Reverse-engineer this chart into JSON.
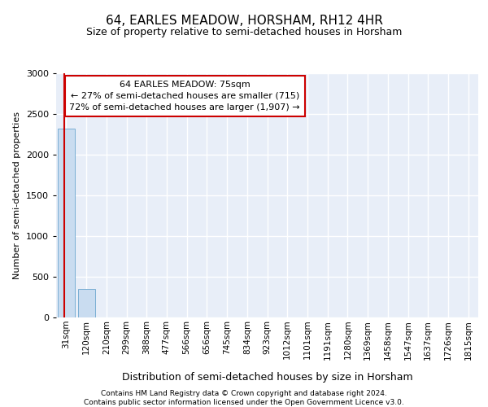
{
  "title": "64, EARLES MEADOW, HORSHAM, RH12 4HR",
  "subtitle": "Size of property relative to semi-detached houses in Horsham",
  "xlabel": "Distribution of semi-detached houses by size in Horsham",
  "ylabel": "Number of semi-detached properties",
  "footnote1": "Contains HM Land Registry data © Crown copyright and database right 2024.",
  "footnote2": "Contains public sector information licensed under the Open Government Licence v3.0.",
  "bar_labels": [
    "31sqm",
    "120sqm",
    "210sqm",
    "299sqm",
    "388sqm",
    "477sqm",
    "566sqm",
    "656sqm",
    "745sqm",
    "834sqm",
    "923sqm",
    "1012sqm",
    "1101sqm",
    "1191sqm",
    "1280sqm",
    "1369sqm",
    "1458sqm",
    "1547sqm",
    "1637sqm",
    "1726sqm",
    "1815sqm"
  ],
  "bar_values": [
    2320,
    350,
    2,
    0,
    0,
    0,
    0,
    0,
    0,
    0,
    0,
    0,
    0,
    0,
    0,
    0,
    0,
    0,
    0,
    0,
    0
  ],
  "bar_color": "#c9dcf0",
  "bar_edge_color": "#7aaed4",
  "ylim": [
    0,
    3000
  ],
  "yticks": [
    0,
    500,
    1000,
    1500,
    2000,
    2500,
    3000
  ],
  "annotation_title": "64 EARLES MEADOW: 75sqm",
  "annotation_line1": "← 27% of semi-detached houses are smaller (715)",
  "annotation_line2": "72% of semi-detached houses are larger (1,907) →",
  "annotation_box_color": "#cc0000",
  "prop_line_xdata": 0.5,
  "background_color": "#e8eef8",
  "grid_color": "#ffffff",
  "title_fontsize": 11,
  "subtitle_fontsize": 9,
  "ylabel_fontsize": 8,
  "xlabel_fontsize": 9,
  "tick_fontsize": 7.5,
  "ann_fontsize": 8,
  "footnote_fontsize": 6.5
}
